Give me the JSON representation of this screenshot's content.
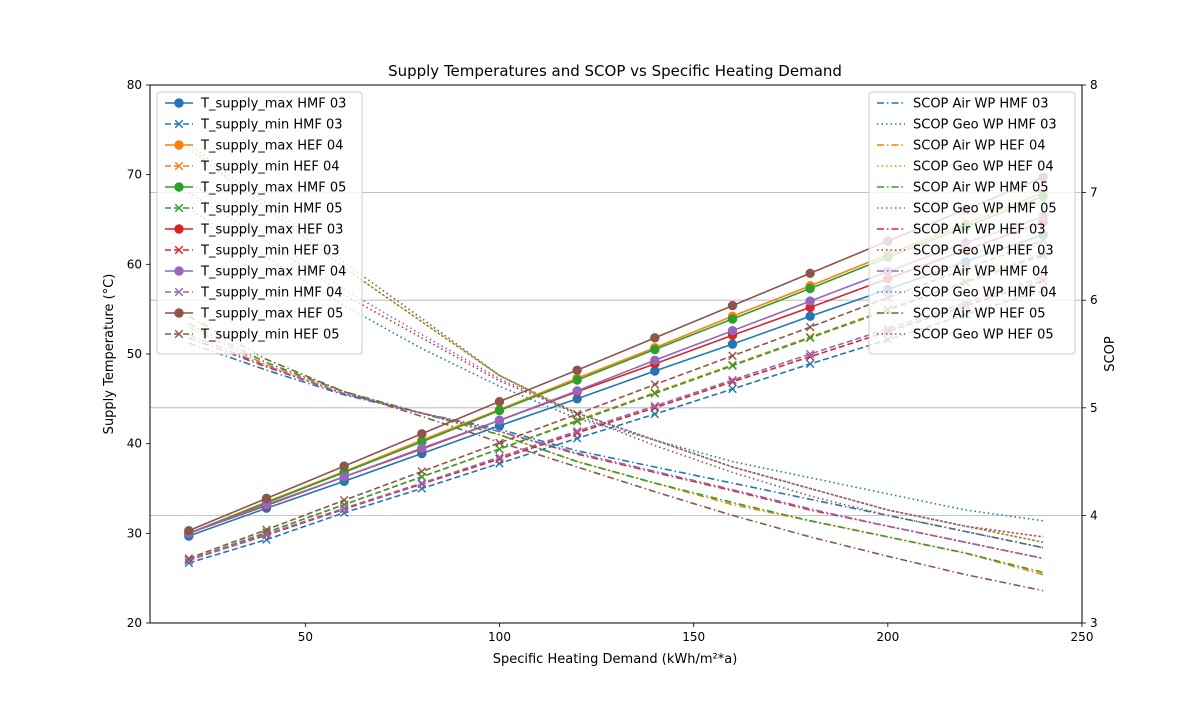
{
  "chart_data": {
    "type": "line",
    "title": "Supply Temperatures and SCOP vs Specific Heating Demand",
    "xlabel": "Specific Heating Demand (kWh/m²*a)",
    "ylabel_left": "Supply Temperature (°C)",
    "ylabel_right": "SCOP",
    "xlim": [
      10,
      250
    ],
    "ylim_left": [
      20,
      80
    ],
    "ylim_right": [
      3,
      8
    ],
    "xticks": [
      "50",
      "100",
      "150",
      "200",
      "250"
    ],
    "yticks_left": [
      "20",
      "30",
      "40",
      "50",
      "60",
      "70",
      "80"
    ],
    "yticks_right": [
      "3",
      "4",
      "5",
      "6",
      "7",
      "8"
    ],
    "grid": "horizontal lines at right-axis ticks",
    "legend_left_placement": "upper-left",
    "legend_right_placement": "upper-right",
    "x": [
      20,
      40,
      60,
      80,
      100,
      120,
      140,
      160,
      180,
      200,
      220,
      240
    ],
    "temperature_series": [
      {
        "name": "T_supply_max HMF 03",
        "color": "#1f77b4",
        "style": "solid",
        "marker": "circle",
        "values": [
          29.7,
          32.8,
          35.8,
          38.9,
          42.0,
          45.0,
          48.1,
          51.1,
          54.2,
          57.2,
          60.3,
          63.3
        ]
      },
      {
        "name": "T_supply_min HMF 03",
        "color": "#1f77b4",
        "style": "dashed",
        "marker": "x",
        "values": [
          26.7,
          29.3,
          32.3,
          35.0,
          37.8,
          40.6,
          43.3,
          46.1,
          48.9,
          51.6,
          54.4,
          57.1
        ]
      },
      {
        "name": "T_supply_max HEF 04",
        "color": "#ff7f0e",
        "style": "solid",
        "marker": "circle",
        "values": [
          30.0,
          33.5,
          36.9,
          40.4,
          43.8,
          47.3,
          50.7,
          54.2,
          57.6,
          61.1,
          64.5,
          68.0
        ]
      },
      {
        "name": "T_supply_min HEF 04",
        "color": "#ff7f0e",
        "style": "dashed",
        "marker": "x",
        "values": [
          27.0,
          30.1,
          33.2,
          36.3,
          39.4,
          42.6,
          45.7,
          48.8,
          51.9,
          55.0,
          58.1,
          61.2
        ]
      },
      {
        "name": "T_supply_max HMF 05",
        "color": "#2ca02c",
        "style": "solid",
        "marker": "circle",
        "values": [
          30.0,
          33.4,
          36.8,
          40.2,
          43.7,
          47.1,
          50.5,
          53.9,
          57.3,
          60.8,
          64.2,
          67.6
        ]
      },
      {
        "name": "T_supply_min HMF 05",
        "color": "#2ca02c",
        "style": "dashed",
        "marker": "x",
        "values": [
          27.0,
          30.1,
          33.2,
          36.3,
          39.4,
          42.5,
          45.6,
          48.7,
          51.8,
          54.9,
          58.0,
          61.0
        ]
      },
      {
        "name": "T_supply_max HEF 03",
        "color": "#d62728",
        "style": "solid",
        "marker": "circle",
        "values": [
          30.0,
          33.1,
          36.3,
          39.4,
          42.6,
          45.8,
          48.9,
          52.1,
          55.2,
          58.4,
          61.6,
          64.7
        ]
      },
      {
        "name": "T_supply_min HEF 03",
        "color": "#d62728",
        "style": "dashed",
        "marker": "x",
        "values": [
          27.0,
          29.8,
          32.7,
          35.5,
          38.3,
          41.2,
          44.0,
          46.9,
          49.7,
          52.5,
          55.4,
          58.2
        ]
      },
      {
        "name": "T_supply_max HMF 04",
        "color": "#9467bd",
        "style": "solid",
        "marker": "circle",
        "values": [
          30.0,
          33.2,
          36.3,
          39.5,
          42.6,
          45.9,
          49.3,
          52.6,
          55.9,
          59.2,
          62.4,
          65.3
        ]
      },
      {
        "name": "T_supply_min HMF 04",
        "color": "#9467bd",
        "style": "dashed",
        "marker": "x",
        "values": [
          27.0,
          29.9,
          32.8,
          35.6,
          38.5,
          41.4,
          44.2,
          47.1,
          50.0,
          52.8,
          55.7,
          58.6
        ]
      },
      {
        "name": "T_supply_max HEF 05",
        "color": "#8c564b",
        "style": "solid",
        "marker": "circle",
        "values": [
          30.3,
          33.9,
          37.5,
          41.1,
          44.7,
          48.2,
          51.8,
          55.4,
          59.0,
          62.6,
          66.1,
          69.7
        ]
      },
      {
        "name": "T_supply_min HEF 05",
        "color": "#8c564b",
        "style": "dashed",
        "marker": "x",
        "values": [
          27.2,
          30.4,
          33.7,
          36.9,
          40.1,
          43.3,
          46.6,
          49.8,
          53.0,
          56.3,
          59.5,
          62.7
        ]
      }
    ],
    "scop_series": [
      {
        "name": "SCOP Air WP HMF 03",
        "color": "#1f77b4",
        "style": "dashdot",
        "values": [
          5.6,
          5.35,
          5.12,
          4.95,
          4.8,
          4.6,
          4.45,
          4.3,
          4.15,
          4.0,
          3.85,
          3.7
        ]
      },
      {
        "name": "SCOP Geo WP HMF 03",
        "color": "#1f77b4",
        "style": "dotted",
        "values": [
          6.85,
          6.4,
          5.95,
          5.55,
          5.2,
          4.9,
          4.7,
          4.5,
          4.35,
          4.2,
          4.05,
          3.95
        ]
      },
      {
        "name": "SCOP Air WP HEF 04",
        "color": "#ff7f0e",
        "style": "dashdot",
        "values": [
          5.75,
          5.4,
          5.15,
          4.95,
          4.75,
          4.5,
          4.3,
          4.1,
          3.95,
          3.8,
          3.65,
          3.45
        ]
      },
      {
        "name": "SCOP Geo WP HEF 04",
        "color": "#ff7f0e",
        "style": "dotted",
        "values": [
          7.4,
          6.85,
          6.3,
          5.8,
          5.3,
          4.95,
          4.7,
          4.45,
          4.25,
          4.05,
          3.9,
          3.75
        ]
      },
      {
        "name": "SCOP Air WP HMF 05",
        "color": "#2ca02c",
        "style": "dashdot",
        "values": [
          5.78,
          5.42,
          5.15,
          4.95,
          4.75,
          4.5,
          4.3,
          4.12,
          3.95,
          3.8,
          3.65,
          3.47
        ]
      },
      {
        "name": "SCOP Geo WP HMF 05",
        "color": "#2ca02c",
        "style": "dotted",
        "values": [
          7.42,
          6.86,
          6.3,
          5.8,
          5.3,
          4.95,
          4.7,
          4.45,
          4.25,
          4.05,
          3.9,
          3.75
        ]
      },
      {
        "name": "SCOP Air WP HEF 03",
        "color": "#d62728",
        "style": "dashdot",
        "values": [
          5.65,
          5.38,
          5.13,
          4.95,
          4.78,
          4.57,
          4.4,
          4.23,
          4.05,
          3.9,
          3.75,
          3.6
        ]
      },
      {
        "name": "SCOP Geo WP HEF 03",
        "color": "#d62728",
        "style": "dotted",
        "values": [
          7.0,
          6.55,
          6.05,
          5.65,
          5.25,
          4.95,
          4.7,
          4.45,
          4.25,
          4.05,
          3.9,
          3.8
        ]
      },
      {
        "name": "SCOP Air WP HMF 04",
        "color": "#9467bd",
        "style": "dashdot",
        "values": [
          5.68,
          5.39,
          5.13,
          4.95,
          4.78,
          4.58,
          4.41,
          4.24,
          4.06,
          3.9,
          3.75,
          3.6
        ]
      },
      {
        "name": "SCOP Geo WP HMF 04",
        "color": "#9467bd",
        "style": "dotted",
        "values": [
          7.1,
          6.6,
          6.1,
          5.68,
          5.27,
          4.95,
          4.7,
          4.45,
          4.25,
          4.05,
          3.9,
          3.8
        ]
      },
      {
        "name": "SCOP Air WP HEF 05",
        "color": "#8c564b",
        "style": "dashdot",
        "values": [
          5.85,
          5.45,
          5.15,
          4.92,
          4.68,
          4.45,
          4.22,
          4.0,
          3.8,
          3.62,
          3.45,
          3.3
        ]
      },
      {
        "name": "SCOP Geo WP HEF 05",
        "color": "#8c564b",
        "style": "dotted",
        "values": [
          7.45,
          6.9,
          6.35,
          5.83,
          5.3,
          4.93,
          4.65,
          4.4,
          4.18,
          4.0,
          3.85,
          3.7
        ]
      }
    ]
  }
}
